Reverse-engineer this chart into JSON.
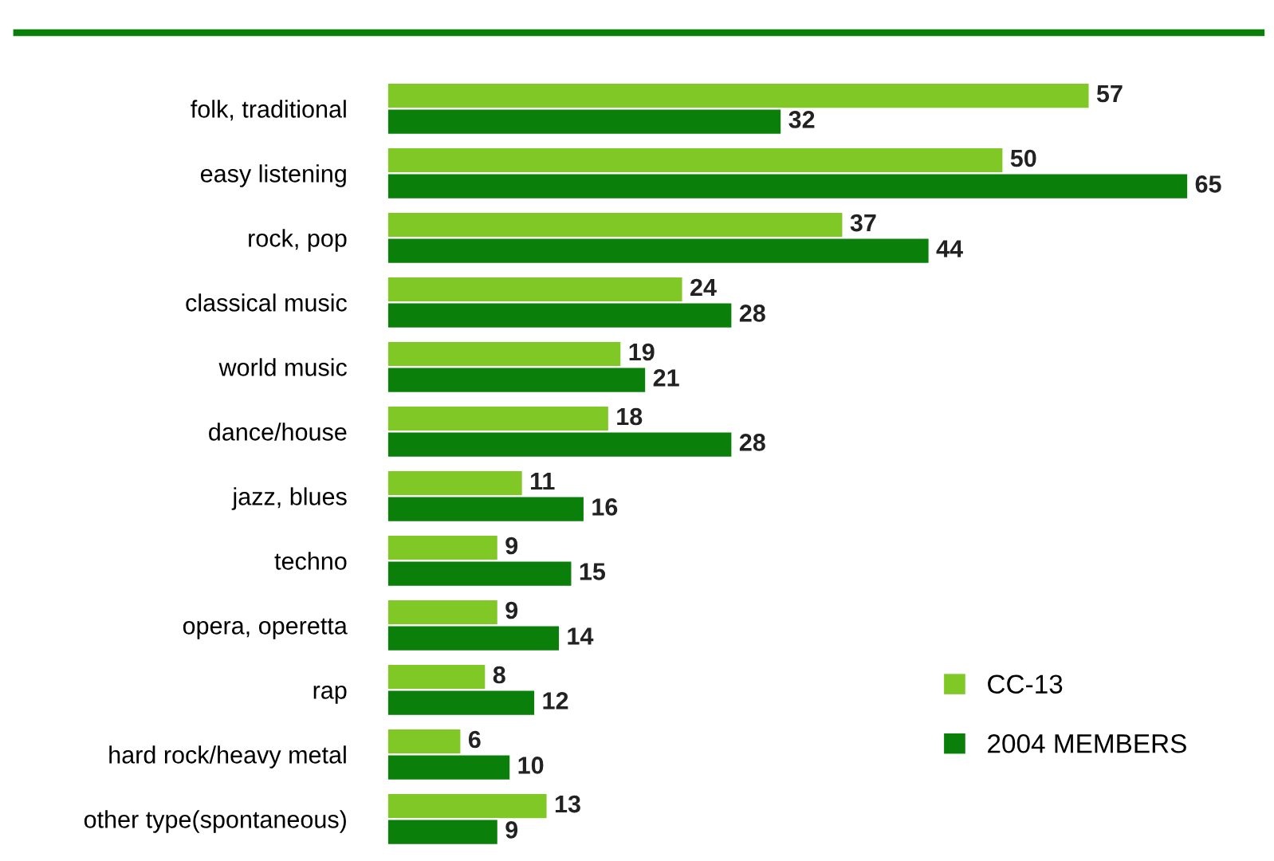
{
  "chart_data": {
    "type": "bar",
    "orientation": "horizontal",
    "categories": [
      "folk, traditional",
      "easy listening",
      "rock, pop",
      "classical music",
      "world music",
      "dance/house",
      "jazz, blues",
      "techno",
      "opera, operetta",
      "rap",
      "hard rock/heavy metal",
      "other type(spontaneous)"
    ],
    "series": [
      {
        "name": "CC-13",
        "color": "#80c825",
        "values": [
          57,
          50,
          37,
          24,
          19,
          18,
          11,
          9,
          9,
          8,
          6,
          13
        ]
      },
      {
        "name": "2004 MEMBERS",
        "color": "#0a800a",
        "values": [
          32,
          65,
          44,
          28,
          21,
          28,
          16,
          15,
          14,
          12,
          10,
          9
        ]
      }
    ],
    "data_labels": true,
    "legend": "bottom right",
    "grid": false
  }
}
